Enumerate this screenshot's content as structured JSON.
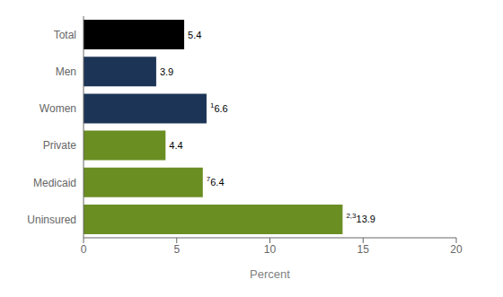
{
  "chart_data": {
    "type": "bar",
    "orientation": "horizontal",
    "categories": [
      "Total",
      "Men",
      "Women",
      "Private",
      "Medicaid",
      "Uninsured"
    ],
    "values": [
      5.4,
      3.9,
      6.6,
      4.4,
      6.4,
      13.9
    ],
    "colors": [
      "#000000",
      "#1c3557",
      "#1c3557",
      "#6b8e23",
      "#6b8e23",
      "#6b8e23"
    ],
    "footnotes": [
      null,
      null,
      "1",
      null,
      "7",
      "2,3"
    ],
    "data_labels": true,
    "xlabel": "Percent",
    "xlim": [
      0,
      20
    ],
    "xticks": [
      0,
      5,
      10,
      15,
      20
    ],
    "grid": false
  }
}
